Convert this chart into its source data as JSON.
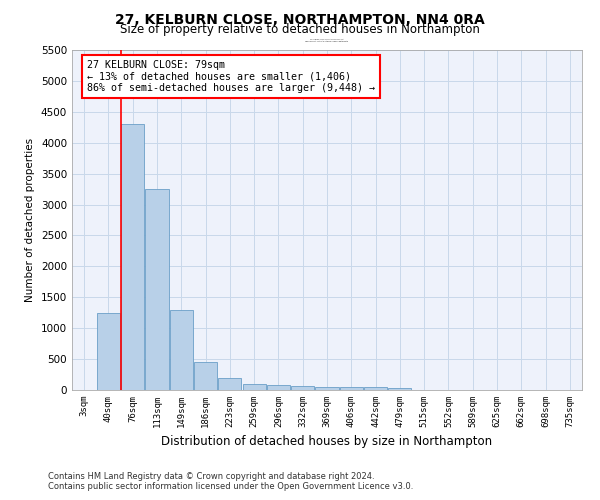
{
  "title": "27, KELBURN CLOSE, NORTHAMPTON, NN4 0RA",
  "subtitle": "Size of property relative to detached houses in Northampton",
  "xlabel": "Distribution of detached houses by size in Northampton",
  "ylabel": "Number of detached properties",
  "bar_color": "#b8d0e8",
  "bar_edge_color": "#6a9fc8",
  "grid_color": "#c8d8ea",
  "bg_color": "#eef2fb",
  "footnote1": "Contains HM Land Registry data © Crown copyright and database right 2024.",
  "footnote2": "Contains public sector information licensed under the Open Government Licence v3.0.",
  "bin_labels": [
    "3sqm",
    "40sqm",
    "76sqm",
    "113sqm",
    "149sqm",
    "186sqm",
    "223sqm",
    "259sqm",
    "296sqm",
    "332sqm",
    "369sqm",
    "406sqm",
    "442sqm",
    "479sqm",
    "515sqm",
    "552sqm",
    "589sqm",
    "625sqm",
    "662sqm",
    "698sqm",
    "735sqm"
  ],
  "bar_values": [
    0,
    1250,
    4300,
    3250,
    1300,
    450,
    200,
    100,
    75,
    60,
    50,
    50,
    45,
    40,
    0,
    0,
    0,
    0,
    0,
    0,
    0
  ],
  "red_line_x": 1.5,
  "annotation_text": "27 KELBURN CLOSE: 79sqm\n← 13% of detached houses are smaller (1,406)\n86% of semi-detached houses are larger (9,448) →",
  "ylim": [
    0,
    5500
  ],
  "yticks": [
    0,
    500,
    1000,
    1500,
    2000,
    2500,
    3000,
    3500,
    4000,
    4500,
    5000,
    5500
  ]
}
